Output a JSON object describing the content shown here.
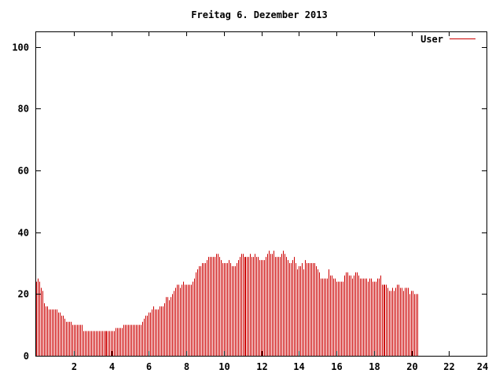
{
  "chart_data": {
    "type": "bar",
    "title": "Freitag 6. Dezember 2013",
    "xlabel": "",
    "ylabel": "",
    "xlim": [
      0,
      24
    ],
    "ylim": [
      0,
      105
    ],
    "x_ticks": [
      2,
      4,
      6,
      8,
      10,
      12,
      14,
      16,
      18,
      20,
      22,
      24
    ],
    "y_ticks": [
      0,
      20,
      40,
      60,
      80,
      100
    ],
    "grid": false,
    "legend_position": "top-right",
    "series": [
      {
        "name": "User",
        "color": "#cc0000",
        "x_start": 0,
        "x_step": 0.0833,
        "values": [
          24,
          25,
          24,
          22,
          21,
          17,
          16,
          16,
          15,
          15,
          15,
          15,
          15,
          15,
          14,
          14,
          13,
          13,
          12,
          11,
          11,
          11,
          11,
          10,
          10,
          10,
          10,
          10,
          10,
          10,
          8,
          8,
          8,
          8,
          8,
          8,
          8,
          8,
          8,
          8,
          8,
          8,
          8,
          8,
          8,
          8,
          8,
          8,
          8,
          8,
          8,
          9,
          9,
          9,
          9,
          9,
          10,
          10,
          10,
          10,
          10,
          10,
          10,
          10,
          10,
          10,
          10,
          10,
          11,
          12,
          13,
          13,
          14,
          14,
          15,
          16,
          15,
          15,
          15,
          16,
          16,
          16,
          17,
          19,
          19,
          18,
          19,
          20,
          21,
          22,
          23,
          23,
          22,
          23,
          24,
          23,
          23,
          23,
          23,
          23,
          24,
          25,
          27,
          28,
          29,
          29,
          30,
          30,
          30,
          31,
          32,
          32,
          32,
          32,
          32,
          33,
          33,
          32,
          31,
          30,
          30,
          30,
          30,
          31,
          30,
          29,
          29,
          29,
          30,
          31,
          32,
          33,
          33,
          32,
          32,
          32,
          32,
          33,
          32,
          32,
          33,
          32,
          32,
          31,
          31,
          31,
          31,
          32,
          33,
          34,
          33,
          33,
          34,
          32,
          32,
          32,
          32,
          33,
          34,
          33,
          32,
          31,
          30,
          30,
          31,
          32,
          30,
          28,
          29,
          29,
          30,
          28,
          31,
          30,
          30,
          30,
          30,
          30,
          30,
          29,
          28,
          27,
          25,
          25,
          25,
          25,
          25,
          28,
          26,
          26,
          25,
          25,
          24,
          24,
          24,
          24,
          24,
          26,
          27,
          27,
          26,
          26,
          25,
          26,
          27,
          27,
          26,
          25,
          25,
          25,
          25,
          25,
          24,
          25,
          25,
          24,
          24,
          24,
          25,
          25,
          26,
          23,
          23,
          23,
          23,
          22,
          21,
          21,
          22,
          21,
          22,
          23,
          23,
          22,
          22,
          21,
          22,
          22,
          22,
          20,
          21,
          21,
          20,
          20,
          20
        ]
      }
    ]
  }
}
